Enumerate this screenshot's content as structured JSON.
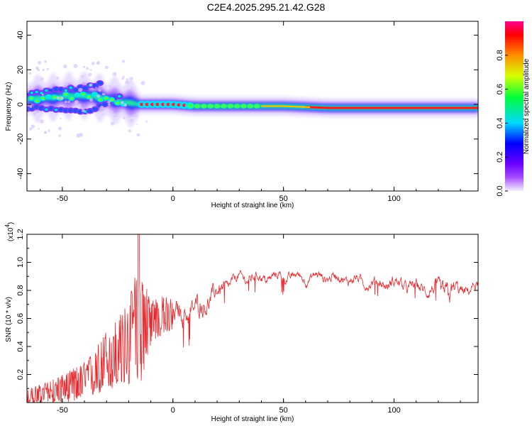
{
  "title": "C2E4.2025.295.21.42.G28",
  "chart_data": [
    {
      "type": "heatmap",
      "name": "spectrogram",
      "xlabel": "Height of straight line (km)",
      "ylabel": "Frequency (Hz)",
      "xlim": [
        -66,
        138
      ],
      "ylim": [
        -50,
        48
      ],
      "xticks": [
        -50,
        0,
        50,
        100
      ],
      "yticks": [
        -40,
        -20,
        0,
        20,
        40
      ],
      "ridge": {
        "x": [
          -66,
          -55,
          -45,
          -38,
          -30,
          -25,
          -20,
          -15,
          -10,
          0,
          10,
          20,
          30,
          50,
          70,
          100,
          120,
          138
        ],
        "freq": [
          3,
          4,
          5,
          5,
          3,
          2,
          1,
          0,
          0,
          0,
          -1,
          -1,
          -1,
          -1,
          -2,
          -2,
          -2,
          -2
        ]
      },
      "branches": [
        {
          "x": [
            -66,
            -55,
            -45,
            -38,
            -32
          ],
          "freq": [
            6,
            8,
            9,
            10,
            12
          ]
        },
        {
          "x": [
            -66,
            -55,
            -45,
            -38,
            -30,
            -22
          ],
          "freq": [
            -2,
            -3,
            -4,
            -4,
            1,
            6
          ]
        }
      ],
      "colorbar": {
        "label": "Normalized spectral amplitude",
        "ticks": [
          0.0,
          0.2,
          0.4,
          0.6,
          0.8
        ],
        "tick_labels": [
          "0.0",
          "0.2",
          "0.4",
          "0.6",
          "0.8"
        ]
      }
    },
    {
      "type": "line",
      "name": "snr",
      "xlabel": "Height of straight line (km)",
      "ylabel": "SNR (10 * v/v)",
      "y_multiplier": "(x10",
      "y_multiplier_exp": "4",
      "y_multiplier_close": ")",
      "xlim": [
        -66,
        138
      ],
      "ylim": [
        0.0,
        1.2
      ],
      "xticks": [
        -50,
        0,
        50,
        100
      ],
      "yticks": [
        0.2,
        0.4,
        0.6,
        0.8,
        1.0,
        1.2
      ],
      "ytick_labels": [
        "0.2",
        "0.4",
        "0.6",
        "0.8",
        "1.0",
        "1.2"
      ],
      "color": "#e8282d",
      "envelope": {
        "x": [
          -66,
          -60,
          -50,
          -40,
          -35,
          -30,
          -25,
          -20,
          -17,
          -14,
          -10,
          -5,
          0,
          5,
          10,
          15,
          20,
          25,
          30,
          40,
          50,
          60,
          70,
          80,
          90,
          100,
          110,
          120,
          125,
          130,
          138
        ],
        "mean": [
          0.04,
          0.06,
          0.1,
          0.15,
          0.22,
          0.3,
          0.35,
          0.42,
          0.5,
          0.55,
          0.58,
          0.62,
          0.62,
          0.64,
          0.66,
          0.72,
          0.78,
          0.84,
          0.89,
          0.89,
          0.9,
          0.89,
          0.9,
          0.88,
          0.85,
          0.85,
          0.82,
          0.8,
          0.78,
          0.8,
          0.82
        ],
        "spread": [
          0.04,
          0.05,
          0.07,
          0.1,
          0.12,
          0.16,
          0.18,
          0.22,
          0.3,
          0.28,
          0.12,
          0.1,
          0.09,
          0.09,
          0.09,
          0.09,
          0.07,
          0.05,
          0.04,
          0.04,
          0.04,
          0.04,
          0.04,
          0.04,
          0.04,
          0.05,
          0.05,
          0.06,
          0.1,
          0.05,
          0.04
        ]
      },
      "peak": {
        "x": -15.5,
        "y": 1.2
      }
    }
  ]
}
